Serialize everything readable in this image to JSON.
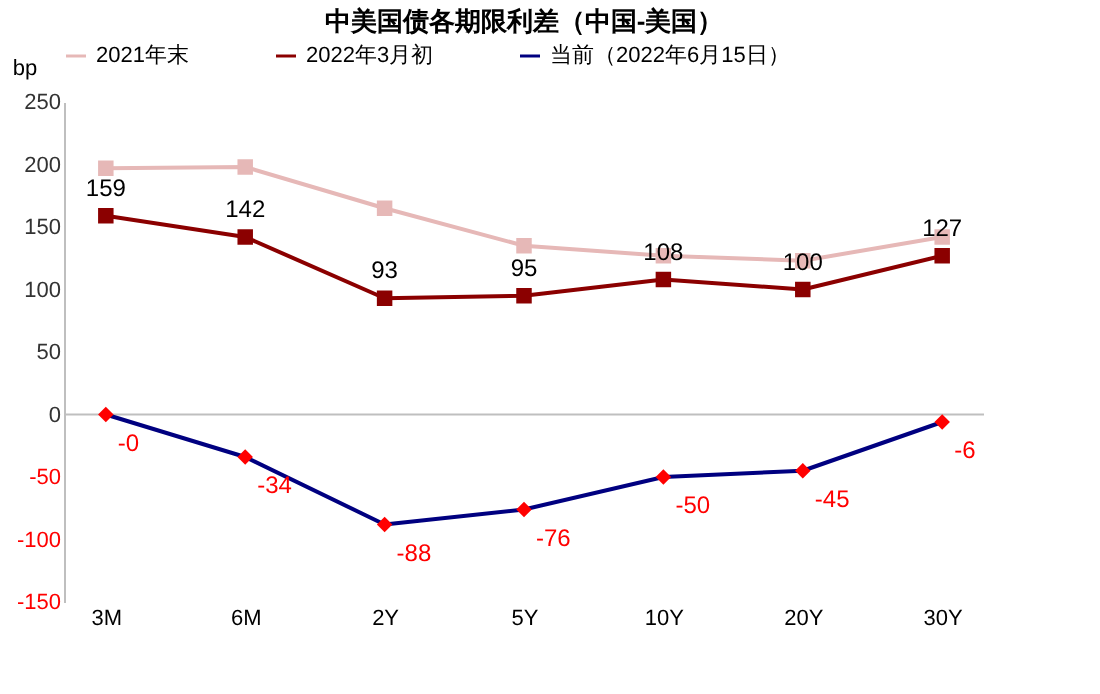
{
  "chart_data": {
    "type": "line",
    "title": "中美国债各期限利差（中国-美国）",
    "ylabel": "bp",
    "categories": [
      "3M",
      "6M",
      "2Y",
      "5Y",
      "10Y",
      "20Y",
      "30Y"
    ],
    "series": [
      {
        "name": "2021年末",
        "color": "#e6b8b7",
        "marker": "square",
        "values": [
          197,
          198,
          165,
          135,
          127,
          123,
          142
        ]
      },
      {
        "name": "2022年3月初",
        "color": "#8b0000",
        "marker": "square",
        "data_labels": true,
        "values": [
          159,
          142,
          93,
          95,
          108,
          100,
          127
        ]
      },
      {
        "name": "当前（2022年6月15日）",
        "color": "#000080",
        "marker": "diamond",
        "colors": [
          "#ff0000",
          "#ff0000",
          "#ff0000",
          "#ff0000",
          "#ff0000",
          "#ff0000",
          "#ff0000"
        ],
        "values": [
          0,
          -34,
          -88,
          -76,
          -50,
          -45,
          -6
        ],
        "value_labels": [
          "-0",
          "-34",
          "-88",
          "-76",
          "-50",
          "-45",
          "-6"
        ]
      }
    ],
    "ylim": [
      -150,
      250
    ],
    "yticks": [
      -150,
      -100,
      -50,
      0,
      50,
      100,
      150,
      200,
      250
    ],
    "ref_lines": [
      {
        "axis": "y",
        "value": 0,
        "color": "#bfbfbf"
      }
    ],
    "grid": false,
    "legend": "top"
  }
}
